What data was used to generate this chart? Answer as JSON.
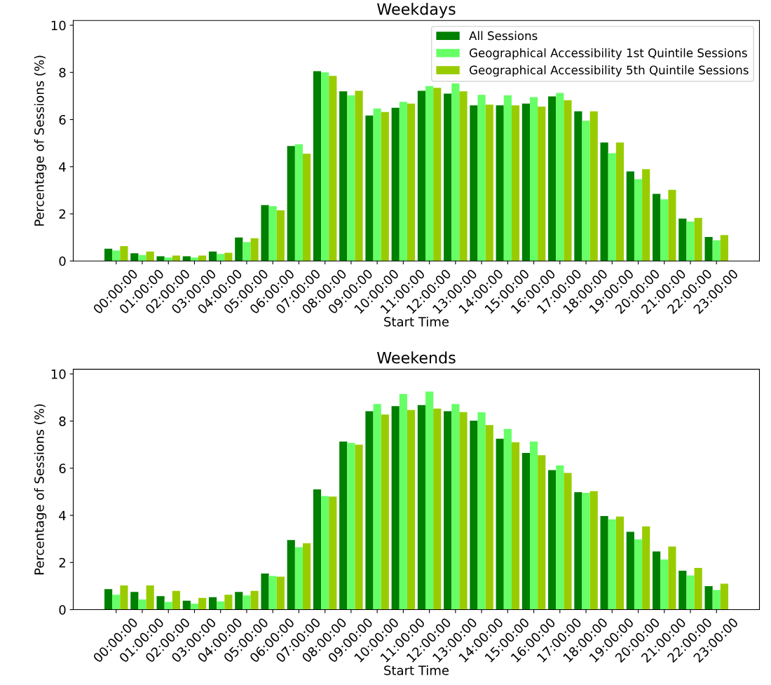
{
  "chart_data": [
    {
      "type": "bar",
      "title": "Weekdays",
      "xlabel": "Start Time",
      "ylabel": "Percentage of Sessions (%)",
      "categories": [
        "00:00:00",
        "01:00:00",
        "02:00:00",
        "03:00:00",
        "04:00:00",
        "05:00:00",
        "06:00:00",
        "07:00:00",
        "08:00:00",
        "09:00:00",
        "10:00:00",
        "11:00:00",
        "12:00:00",
        "13:00:00",
        "14:00:00",
        "15:00:00",
        "16:00:00",
        "17:00:00",
        "18:00:00",
        "19:00:00",
        "20:00:00",
        "21:00:00",
        "22:00:00",
        "23:00:00"
      ],
      "series": [
        {
          "name": "All Sessions",
          "color": "#008000",
          "values": [
            0.52,
            0.33,
            0.2,
            0.2,
            0.4,
            1.0,
            2.37,
            4.88,
            8.05,
            7.2,
            6.17,
            6.5,
            7.22,
            7.1,
            6.6,
            6.6,
            6.68,
            6.98,
            6.35,
            5.03,
            3.8,
            2.85,
            1.8,
            1.02
          ]
        },
        {
          "name": "Geographical Accessibility 1st Quintile Sessions",
          "color": "#66ff66",
          "values": [
            0.45,
            0.25,
            0.15,
            0.15,
            0.3,
            0.8,
            2.33,
            4.95,
            8.0,
            7.03,
            6.47,
            6.75,
            7.42,
            7.53,
            7.05,
            7.03,
            6.95,
            7.13,
            5.95,
            4.57,
            3.47,
            2.62,
            1.67,
            0.88
          ]
        },
        {
          "name": "Geographical Accessibility 5th Quintile Sessions",
          "color": "#99cc00",
          "values": [
            0.63,
            0.4,
            0.23,
            0.23,
            0.35,
            0.97,
            2.15,
            4.55,
            7.85,
            7.22,
            6.32,
            6.68,
            7.35,
            7.2,
            6.63,
            6.6,
            6.55,
            6.82,
            6.35,
            5.03,
            3.9,
            3.02,
            1.83,
            1.1
          ]
        }
      ],
      "ylim": [
        0,
        10.2
      ],
      "yticks": [
        0,
        2,
        4,
        6,
        8,
        10
      ],
      "legend": "top right",
      "grid": false
    },
    {
      "type": "bar",
      "title": "Weekends",
      "xlabel": "Start Time",
      "ylabel": "Percentage of Sessions (%)",
      "categories": [
        "00:00:00",
        "01:00:00",
        "02:00:00",
        "03:00:00",
        "04:00:00",
        "05:00:00",
        "06:00:00",
        "07:00:00",
        "08:00:00",
        "09:00:00",
        "10:00:00",
        "11:00:00",
        "12:00:00",
        "13:00:00",
        "14:00:00",
        "15:00:00",
        "16:00:00",
        "17:00:00",
        "18:00:00",
        "19:00:00",
        "20:00:00",
        "21:00:00",
        "22:00:00",
        "23:00:00"
      ],
      "series": [
        {
          "color": "#008000",
          "values": [
            0.87,
            0.75,
            0.57,
            0.38,
            0.53,
            0.75,
            1.53,
            2.95,
            5.1,
            7.13,
            8.42,
            8.63,
            8.68,
            8.42,
            8.02,
            7.25,
            6.65,
            5.92,
            4.98,
            3.97,
            3.3,
            2.47,
            1.65,
            1.0
          ]
        },
        {
          "color": "#66ff66",
          "values": [
            0.63,
            0.43,
            0.33,
            0.25,
            0.35,
            0.6,
            1.43,
            2.65,
            4.82,
            7.07,
            8.72,
            9.15,
            9.25,
            8.72,
            8.37,
            7.67,
            7.13,
            6.12,
            4.95,
            3.83,
            2.98,
            2.13,
            1.45,
            0.83
          ]
        },
        {
          "color": "#99cc00",
          "values": [
            1.03,
            1.03,
            0.8,
            0.5,
            0.63,
            0.8,
            1.4,
            2.82,
            4.8,
            7.0,
            8.28,
            8.47,
            8.53,
            8.38,
            7.83,
            7.1,
            6.55,
            5.8,
            5.03,
            3.95,
            3.53,
            2.68,
            1.77,
            1.1
          ]
        }
      ],
      "ylim": [
        0,
        10.2
      ],
      "yticks": [
        0,
        2,
        4,
        6,
        8,
        10
      ],
      "grid": false
    }
  ]
}
